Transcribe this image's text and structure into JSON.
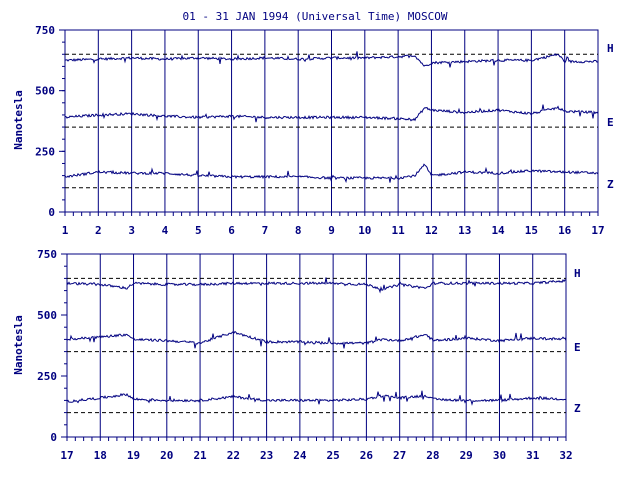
{
  "chart_data": [
    {
      "type": "line",
      "title": "01 - 31 JAN 1994 (Universal Time) MOSCOW",
      "xlabel": "",
      "ylabel": "Nanotesla",
      "xlim": [
        1,
        17
      ],
      "ylim": [
        0,
        750
      ],
      "x_ticks": [
        "1",
        "2",
        "3",
        "4",
        "5",
        "6",
        "7",
        "8",
        "9",
        "10",
        "11",
        "12",
        "13",
        "14",
        "15",
        "16",
        "17"
      ],
      "y_ticks": [
        "0",
        "250",
        "500",
        "750"
      ],
      "grid": "vertical lines at each day",
      "series": [
        {
          "name": "H",
          "baseline": 650,
          "x": [
            1,
            2,
            3,
            4,
            5,
            6,
            7,
            8,
            9,
            10,
            11,
            11.5,
            11.8,
            12,
            13,
            14,
            15,
            15.8,
            16,
            17
          ],
          "values": [
            625,
            630,
            635,
            630,
            635,
            630,
            635,
            630,
            635,
            635,
            640,
            645,
            600,
            615,
            620,
            625,
            625,
            650,
            620,
            620
          ]
        },
        {
          "name": "E",
          "baseline": 350,
          "x": [
            1,
            2,
            3,
            4,
            5,
            6,
            7,
            8,
            9,
            10,
            11,
            11.5,
            11.8,
            12,
            13,
            14,
            15,
            15.8,
            16,
            17
          ],
          "values": [
            390,
            400,
            405,
            395,
            390,
            395,
            390,
            390,
            390,
            390,
            385,
            380,
            430,
            420,
            410,
            420,
            405,
            430,
            415,
            410
          ]
        },
        {
          "name": "Z",
          "baseline": 100,
          "x": [
            1,
            2,
            3,
            4,
            5,
            6,
            7,
            8,
            9,
            10,
            11,
            11.5,
            11.8,
            12,
            13,
            14,
            15,
            15.8,
            16,
            17
          ],
          "values": [
            145,
            165,
            160,
            160,
            150,
            145,
            145,
            145,
            140,
            140,
            140,
            150,
            195,
            150,
            165,
            160,
            170,
            165,
            165,
            160
          ]
        }
      ]
    },
    {
      "type": "line",
      "title": "",
      "xlabel": "",
      "ylabel": "Nanotesla",
      "xlim": [
        17,
        32
      ],
      "ylim": [
        0,
        750
      ],
      "x_ticks": [
        "17",
        "18",
        "19",
        "20",
        "21",
        "22",
        "23",
        "24",
        "25",
        "26",
        "27",
        "28",
        "29",
        "30",
        "31",
        "32"
      ],
      "y_ticks": [
        "0",
        "250",
        "500",
        "750"
      ],
      "grid": "vertical lines at each day",
      "series": [
        {
          "name": "H",
          "baseline": 650,
          "x": [
            17,
            18,
            18.8,
            19,
            20,
            21,
            22,
            23,
            24,
            25,
            26,
            26.5,
            27,
            27.8,
            28,
            29,
            30,
            31,
            32
          ],
          "values": [
            630,
            625,
            610,
            630,
            625,
            625,
            630,
            630,
            630,
            630,
            625,
            605,
            625,
            610,
            630,
            630,
            630,
            630,
            640
          ]
        },
        {
          "name": "E",
          "baseline": 350,
          "x": [
            17,
            18,
            18.8,
            19,
            20,
            21,
            22,
            23,
            24,
            25,
            26,
            26.5,
            27,
            27.8,
            28,
            29,
            30,
            31,
            32
          ],
          "values": [
            400,
            410,
            420,
            400,
            395,
            385,
            430,
            390,
            390,
            385,
            385,
            400,
            395,
            420,
            395,
            405,
            395,
            405,
            400
          ]
        },
        {
          "name": "Z",
          "baseline": 100,
          "x": [
            17,
            18,
            18.8,
            19,
            20,
            21,
            22,
            23,
            24,
            25,
            26,
            26.5,
            27,
            27.8,
            28,
            29,
            30,
            31,
            32
          ],
          "values": [
            145,
            160,
            175,
            155,
            150,
            150,
            165,
            150,
            150,
            150,
            155,
            170,
            160,
            170,
            155,
            150,
            150,
            160,
            155
          ]
        }
      ]
    }
  ]
}
